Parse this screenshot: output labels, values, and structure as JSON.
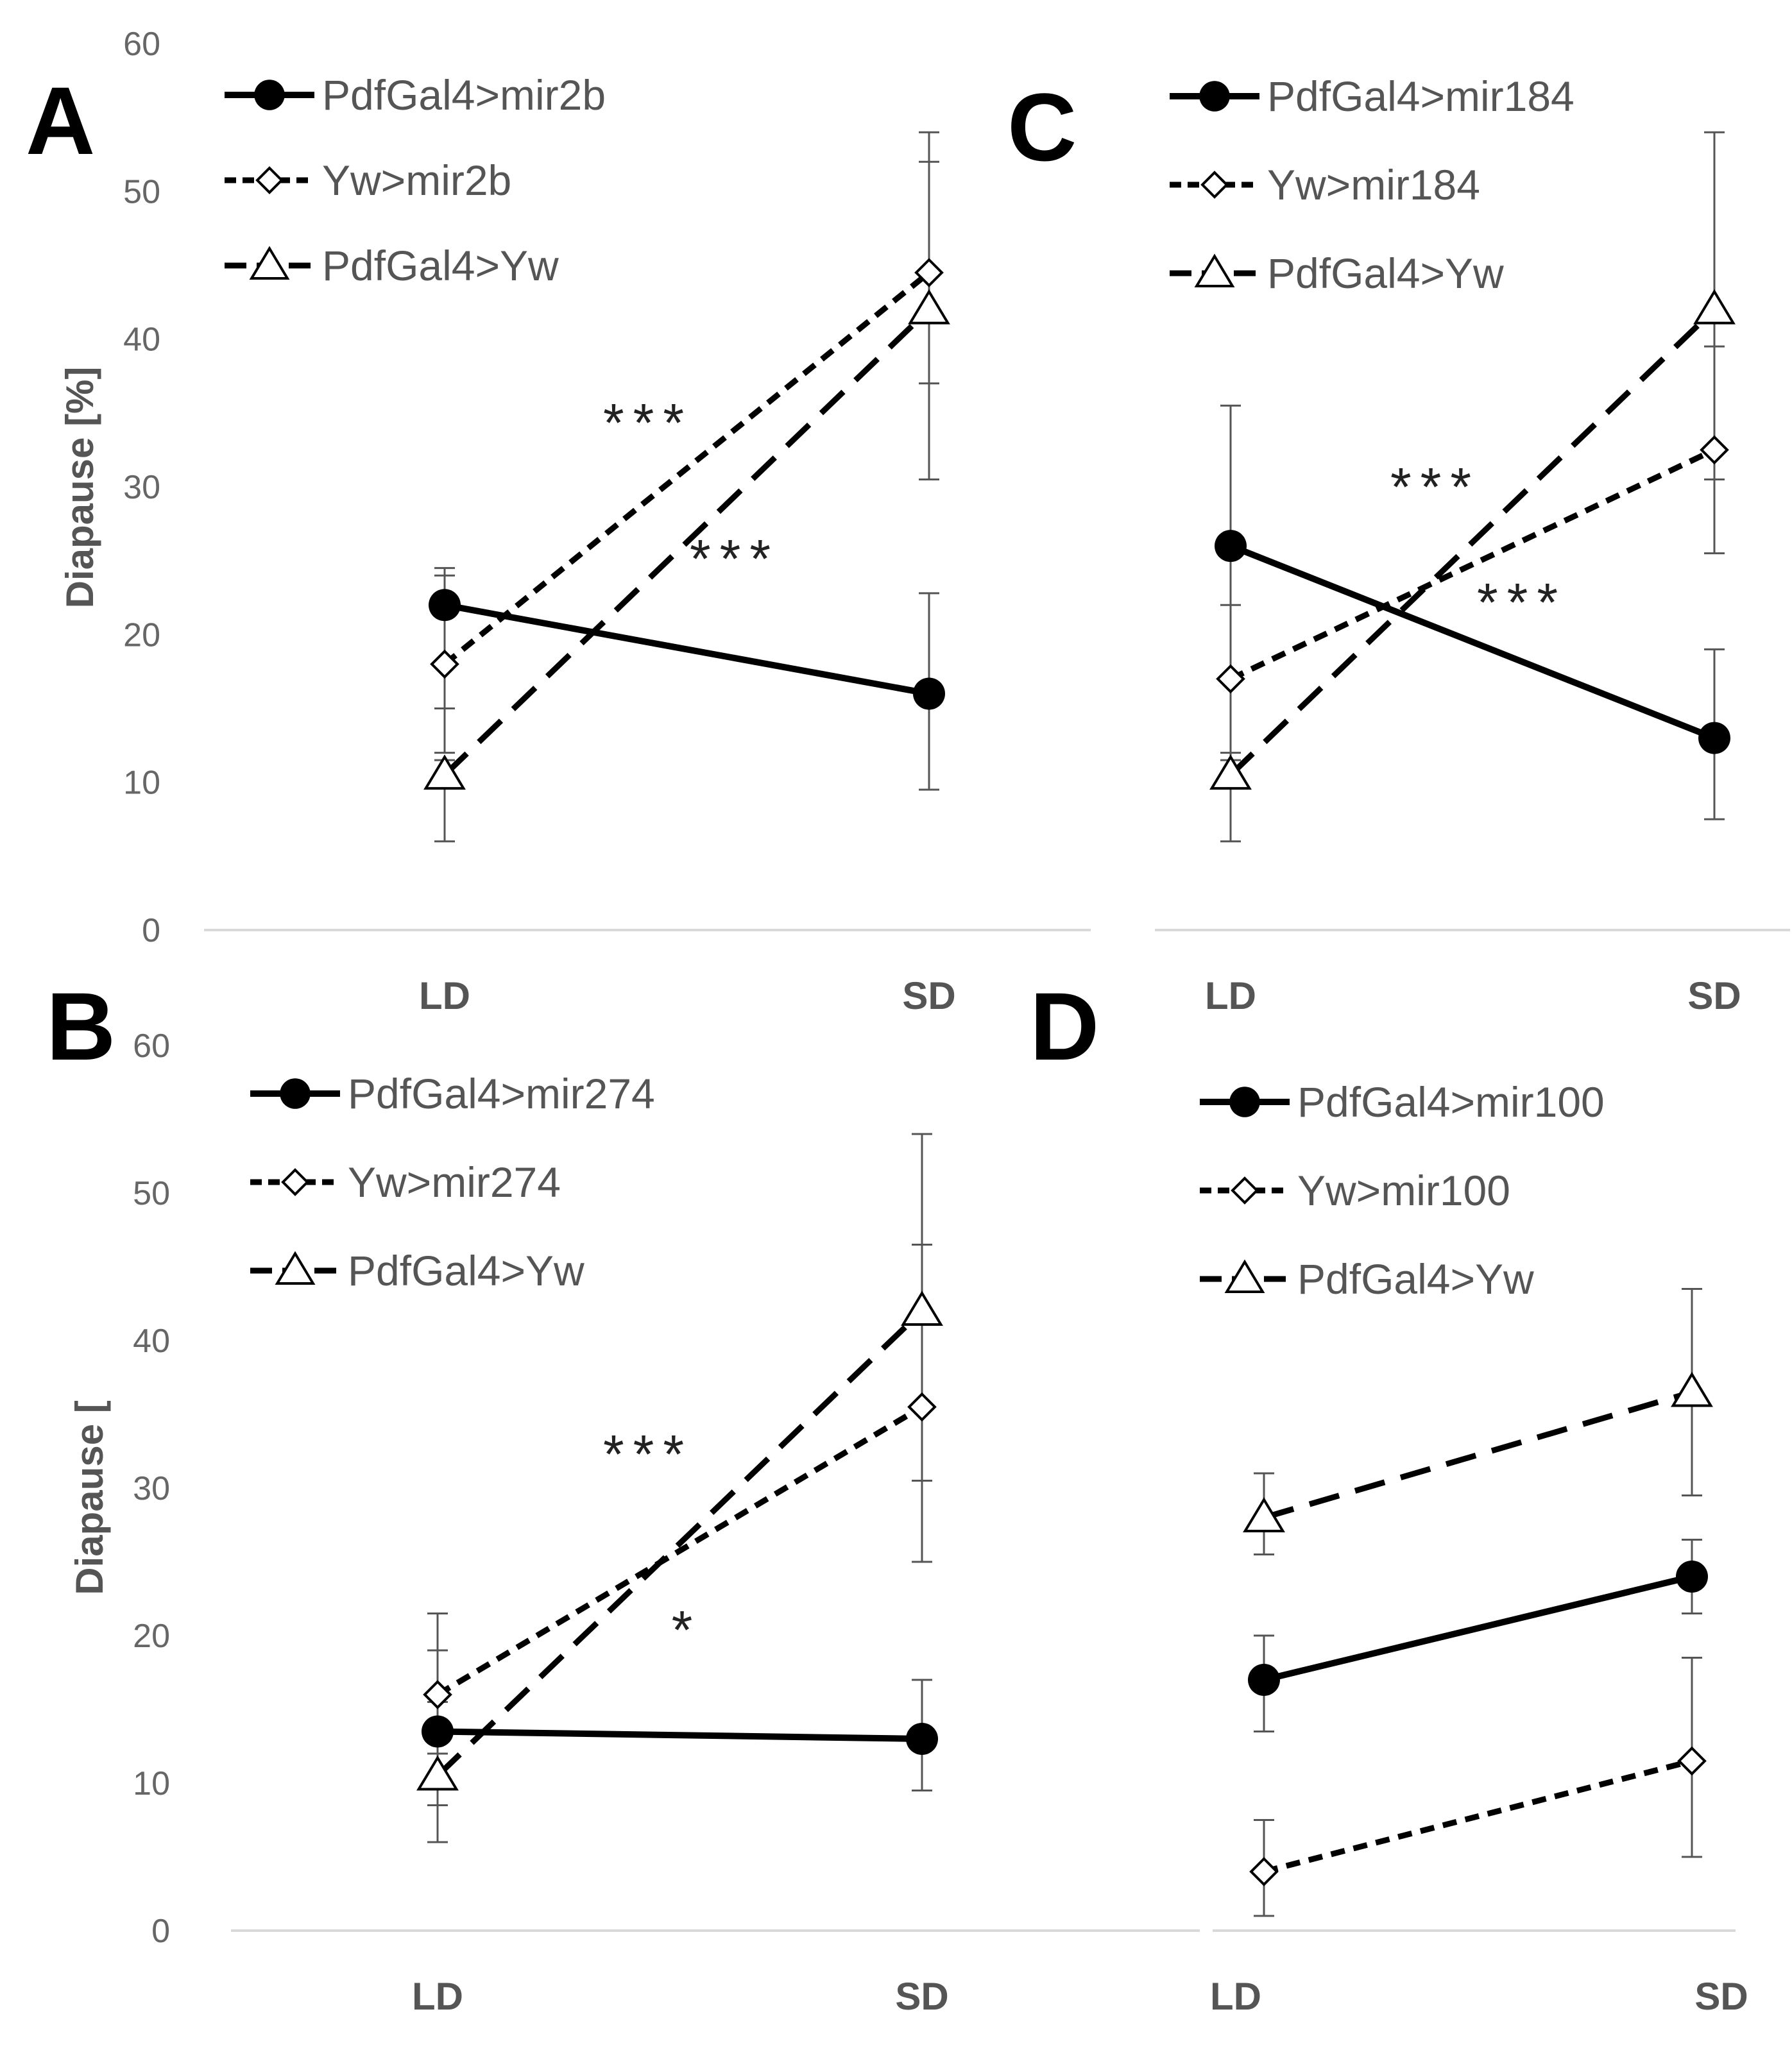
{
  "chart_data": [
    {
      "panel": "A",
      "type": "line",
      "categories": [
        "LD",
        "SD"
      ],
      "ylabel": "Diapause [%]",
      "ylim": [
        0,
        60
      ],
      "yticks": [
        "0",
        "10",
        "20",
        "30",
        "40",
        "50",
        "60"
      ],
      "series": [
        {
          "name": "PdfGal4>mir2b",
          "marker": "filled-circle",
          "line": "solid",
          "values": [
            22,
            16
          ],
          "err_low": [
            15,
            9.5
          ],
          "err_high": [
            24.5,
            22.8
          ]
        },
        {
          "name": "Yw>mir2b",
          "marker": "open-diamond",
          "line": "dotted",
          "values": [
            18,
            44.5
          ],
          "err_low": [
            12,
            37
          ],
          "err_high": [
            24,
            54
          ]
        },
        {
          "name": "PdfGal4>Yw",
          "marker": "open-triangle",
          "line": "dashed",
          "values": [
            10.5,
            42
          ],
          "err_low": [
            6,
            30.5
          ],
          "err_high": [
            11.5,
            52
          ]
        }
      ],
      "annotations": [
        "***",
        "***"
      ]
    },
    {
      "panel": "B",
      "type": "line",
      "categories": [
        "LD",
        "SD"
      ],
      "ylabel": "Diapause [",
      "ylim": [
        0,
        60
      ],
      "yticks": [
        "0",
        "10",
        "20",
        "30",
        "40",
        "50",
        "60"
      ],
      "series": [
        {
          "name": "PdfGal4>mir274",
          "marker": "filled-circle",
          "line": "solid",
          "values": [
            13.5,
            13
          ],
          "err_low": [
            8.5,
            9.5
          ],
          "err_high": [
            15.5,
            17
          ]
        },
        {
          "name": "Yw>mir274",
          "marker": "open-diamond",
          "line": "dotted",
          "values": [
            16,
            35.5
          ],
          "err_low": [
            12,
            25
          ],
          "err_high": [
            21.5,
            46.5
          ]
        },
        {
          "name": "PdfGal4>Yw",
          "marker": "open-triangle",
          "line": "dashed",
          "values": [
            10.5,
            42
          ],
          "err_low": [
            6,
            30.5
          ],
          "err_high": [
            19,
            54
          ]
        }
      ],
      "annotations": [
        "***",
        "*"
      ]
    },
    {
      "panel": "C",
      "type": "line",
      "categories": [
        "LD",
        "SD"
      ],
      "ylabel": "",
      "ylim": [
        0,
        60
      ],
      "yticks": [],
      "series": [
        {
          "name": "PdfGal4>mir184",
          "marker": "filled-circle",
          "line": "solid",
          "values": [
            26,
            13
          ],
          "err_low": [
            17,
            7.5
          ],
          "err_high": [
            35.5,
            19
          ]
        },
        {
          "name": "Yw>mir184",
          "marker": "open-diamond",
          "line": "dotted",
          "values": [
            17,
            32.5
          ],
          "err_low": [
            11.5,
            25.5
          ],
          "err_high": [
            22,
            39.5
          ]
        },
        {
          "name": "PdfGal4>Yw",
          "marker": "open-triangle",
          "line": "dashed",
          "values": [
            10.5,
            42
          ],
          "err_low": [
            6,
            30.5
          ],
          "err_high": [
            12,
            54
          ]
        }
      ],
      "annotations": [
        "***",
        "***"
      ]
    },
    {
      "panel": "D",
      "type": "line",
      "categories": [
        "LD",
        "SD"
      ],
      "ylabel": "",
      "ylim": [
        0,
        60
      ],
      "yticks": [],
      "series": [
        {
          "name": "PdfGal4>mir100",
          "marker": "filled-circle",
          "line": "solid",
          "values": [
            17,
            24
          ],
          "err_low": [
            13.5,
            21.5
          ],
          "err_high": [
            20,
            26.5
          ]
        },
        {
          "name": "Yw>mir100",
          "marker": "open-diamond",
          "line": "dotted",
          "values": [
            4,
            11.5
          ],
          "err_low": [
            1,
            5
          ],
          "err_high": [
            7.5,
            18.5
          ]
        },
        {
          "name": "PdfGal4>Yw",
          "marker": "open-triangle",
          "line": "dashed",
          "values": [
            28,
            36.5
          ],
          "err_low": [
            25.5,
            29.5
          ],
          "err_high": [
            31,
            43.5
          ]
        }
      ],
      "annotations": []
    }
  ]
}
